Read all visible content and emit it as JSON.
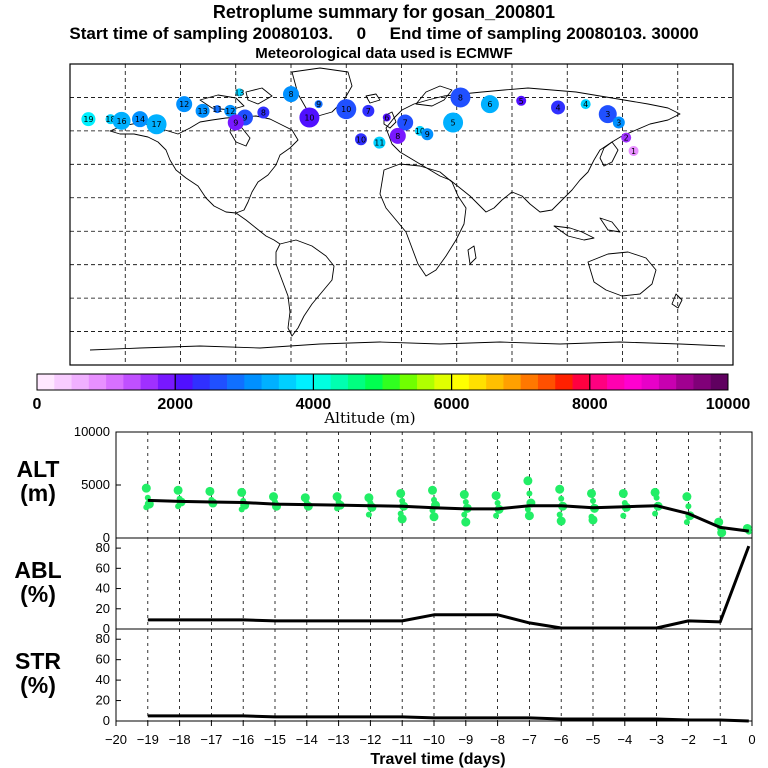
{
  "titles": {
    "line1": "Retroplume summary for gosan_200801",
    "line2": "Start time of sampling 20080103.     0     End time of sampling 20080103. 30000",
    "line3": "Meteorological data used is ECMWF"
  },
  "colorbar": {
    "label": "Altitude  (m)",
    "ticks": [
      "0",
      "2000",
      "4000",
      "6000",
      "8000",
      "10000"
    ],
    "colors": [
      "#ffe8ff",
      "#f8ccff",
      "#f0b0ff",
      "#e890ff",
      "#d870ff",
      "#c050ff",
      "#a030ff",
      "#7818ff",
      "#5010ff",
      "#3030ff",
      "#2050ff",
      "#1070ff",
      "#0090ff",
      "#00b0ff",
      "#00d0ff",
      "#00f0ff",
      "#00ffe0",
      "#00ffb0",
      "#00ff80",
      "#00ff50",
      "#30ff20",
      "#70ff00",
      "#b0ff00",
      "#e0ff00",
      "#ffff00",
      "#ffe000",
      "#ffc000",
      "#ffa000",
      "#ff7800",
      "#ff5000",
      "#ff2000",
      "#ff0040",
      "#ff0080",
      "#ff00b0",
      "#ff00d0",
      "#e800c8",
      "#c800b0",
      "#a00090",
      "#800078",
      "#600060"
    ]
  },
  "map_points": [
    {
      "lon": -170,
      "lat": 57,
      "alt": 3800,
      "lbl": "19"
    },
    {
      "lon": -158,
      "lat": 57,
      "alt": 3600,
      "lbl": "18"
    },
    {
      "lon": -152,
      "lat": 56,
      "alt": 3300,
      "lbl": "16"
    },
    {
      "lon": -142,
      "lat": 57,
      "alt": 3200,
      "lbl": "14"
    },
    {
      "lon": -133,
      "lat": 54,
      "alt": 3400,
      "lbl": "17"
    },
    {
      "lon": -118,
      "lat": 66,
      "alt": 3200,
      "lbl": "12"
    },
    {
      "lon": -108,
      "lat": 62,
      "alt": 3100,
      "lbl": "13"
    },
    {
      "lon": -100,
      "lat": 63,
      "alt": 2800,
      "lbl": "11"
    },
    {
      "lon": -93,
      "lat": 62,
      "alt": 3000,
      "lbl": "12"
    },
    {
      "lon": -85,
      "lat": 58,
      "alt": 2500,
      "lbl": "9"
    },
    {
      "lon": -75,
      "lat": 61,
      "alt": 2300,
      "lbl": "8"
    },
    {
      "lon": -88,
      "lat": 73,
      "alt": 3500,
      "lbl": "13"
    },
    {
      "lon": -60,
      "lat": 72,
      "alt": 3200,
      "lbl": "8"
    },
    {
      "lon": -45,
      "lat": 66,
      "alt": 2800,
      "lbl": "9"
    },
    {
      "lon": -30,
      "lat": 63,
      "alt": 2700,
      "lbl": "10"
    },
    {
      "lon": -18,
      "lat": 62,
      "alt": 2300,
      "lbl": "7"
    },
    {
      "lon": -8,
      "lat": 58,
      "alt": 2100,
      "lbl": "6"
    },
    {
      "lon": 2,
      "lat": 55,
      "alt": 2500,
      "lbl": "7"
    },
    {
      "lon": 10,
      "lat": 50,
      "alt": 3600,
      "lbl": "10"
    },
    {
      "lon": 14,
      "lat": 48,
      "alt": 3000,
      "lbl": "9"
    },
    {
      "lon": 28,
      "lat": 55,
      "alt": 3400,
      "lbl": "5"
    },
    {
      "lon": 32,
      "lat": 70,
      "alt": 2700,
      "lbl": "8"
    },
    {
      "lon": 48,
      "lat": 66,
      "alt": 3300,
      "lbl": "6"
    },
    {
      "lon": 65,
      "lat": 68,
      "alt": 2200,
      "lbl": "5"
    },
    {
      "lon": 85,
      "lat": 64,
      "alt": 2400,
      "lbl": "4"
    },
    {
      "lon": 100,
      "lat": 66,
      "alt": 3600,
      "lbl": "4"
    },
    {
      "lon": 112,
      "lat": 60,
      "alt": 2600,
      "lbl": "3"
    },
    {
      "lon": 118,
      "lat": 55,
      "alt": 3000,
      "lbl": "3"
    },
    {
      "lon": 122,
      "lat": 46,
      "alt": 1500,
      "lbl": "2"
    },
    {
      "lon": 126,
      "lat": 38,
      "alt": 800,
      "lbl": "1"
    },
    {
      "lon": -22,
      "lat": 45,
      "alt": 2300,
      "lbl": "10"
    },
    {
      "lon": -12,
      "lat": 43,
      "alt": 3700,
      "lbl": "11"
    },
    {
      "lon": -2,
      "lat": 47,
      "alt": 1800,
      "lbl": "8"
    },
    {
      "lon": -90,
      "lat": 55,
      "alt": 1800,
      "lbl": "9"
    },
    {
      "lon": -50,
      "lat": 58,
      "alt": 2000,
      "lbl": "10"
    }
  ],
  "chart_data": {
    "type": "line",
    "xlabel": "Travel time (days)",
    "xlim": [
      -20,
      0
    ],
    "x_ticks": [
      "-20",
      "-19",
      "-18",
      "-17",
      "-16",
      "-15",
      "-14",
      "-13",
      "-12",
      "-11",
      "-10",
      "-9",
      "-8",
      "-7",
      "-6",
      "-5",
      "-4",
      "-3",
      "-2",
      "-1",
      "0"
    ],
    "x": [
      -19,
      -18,
      -17,
      -16,
      -15,
      -14,
      -13,
      -12,
      -11,
      -10,
      -9,
      -8,
      -7,
      -6,
      -5,
      -4,
      -3,
      -2,
      -1,
      -0.1
    ],
    "panels": [
      {
        "id": "alt",
        "label_top": "ALT",
        "label_bottom": "(m)",
        "ylim": [
          0,
          10000
        ],
        "y_ticks": [
          "0",
          "5000",
          "10000"
        ],
        "y_tick_values": [
          0,
          5000,
          10000
        ],
        "mean": [
          3550,
          3450,
          3400,
          3350,
          3200,
          3150,
          3100,
          3050,
          3000,
          2850,
          2750,
          2750,
          3050,
          3050,
          2850,
          2950,
          3050,
          2300,
          1000,
          650
        ],
        "scatter": [
          [
            4700,
            3800,
            3200,
            2900
          ],
          [
            4500,
            3700,
            3400,
            3000
          ],
          [
            4400,
            3600,
            3300
          ],
          [
            4300,
            3500,
            3100,
            2700
          ],
          [
            3900,
            3400,
            3000
          ],
          [
            3800,
            3300,
            3000
          ],
          [
            3900,
            3400,
            3100,
            2800
          ],
          [
            3800,
            3300,
            2900,
            2200
          ],
          [
            4200,
            3500,
            3000,
            2300,
            1800
          ],
          [
            4500,
            3600,
            3100,
            2600,
            2000
          ],
          [
            4100,
            3400,
            2800,
            2200,
            1500
          ],
          [
            4000,
            3300,
            2700,
            2100
          ],
          [
            5400,
            4200,
            3300,
            2700,
            2100
          ],
          [
            4600,
            3700,
            3000,
            2200,
            1600
          ],
          [
            4200,
            3500,
            2800,
            2000,
            1700
          ],
          [
            4200,
            3300,
            2900,
            2100
          ],
          [
            4300,
            3800,
            3000,
            2300
          ],
          [
            3900,
            3000,
            2100,
            1500
          ],
          [
            1500,
            900,
            500
          ],
          [
            900,
            600
          ]
        ]
      },
      {
        "id": "abl",
        "label_top": "ABL",
        "label_bottom": "(%)",
        "ylim": [
          0,
          90
        ],
        "y_ticks": [
          "0",
          "20",
          "40",
          "60",
          "80"
        ],
        "y_tick_values": [
          0,
          20,
          40,
          60,
          80
        ],
        "values": [
          9,
          9,
          9,
          9,
          8,
          8,
          8,
          8,
          8,
          14,
          14,
          14,
          6,
          1,
          1,
          1,
          1,
          8,
          7,
          82
        ]
      },
      {
        "id": "str",
        "label_top": "STR",
        "label_bottom": "(%)",
        "ylim": [
          0,
          90
        ],
        "y_ticks": [
          "0",
          "20",
          "40",
          "60",
          "80"
        ],
        "y_tick_values": [
          0,
          20,
          40,
          60,
          80
        ],
        "values": [
          5,
          5,
          5,
          5,
          4,
          4,
          4,
          4,
          4,
          3,
          3,
          3,
          3,
          2,
          2,
          2,
          2,
          1,
          1,
          0
        ]
      }
    ]
  }
}
